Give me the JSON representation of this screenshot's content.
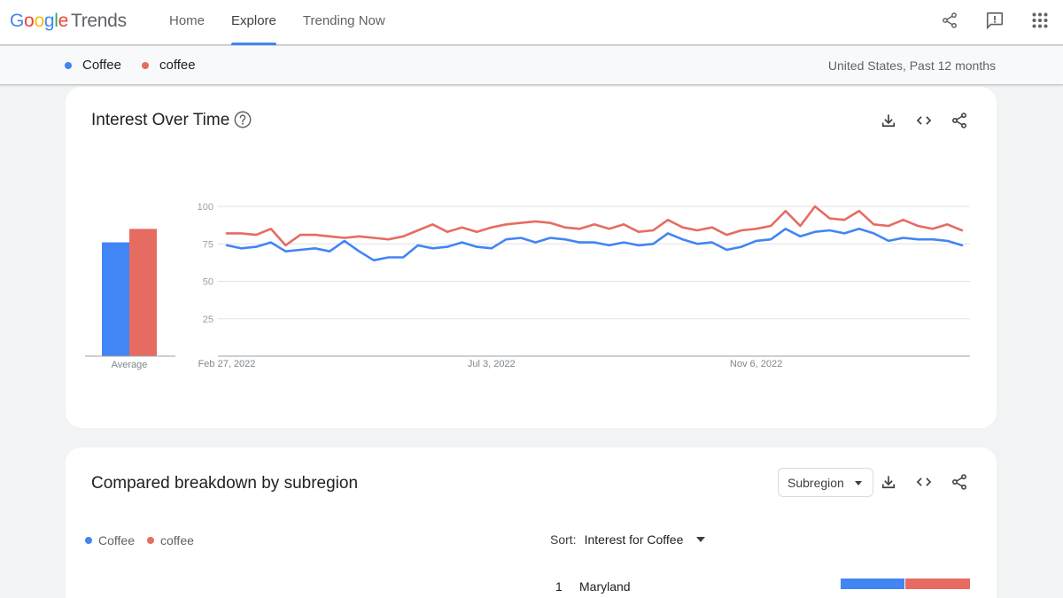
{
  "header": {
    "logo_google": [
      "G",
      "o",
      "o",
      "g",
      "l",
      "e"
    ],
    "logo_trends": "Trends",
    "nav": [
      {
        "label": "Home",
        "active": false
      },
      {
        "label": "Explore",
        "active": true
      },
      {
        "label": "Trending Now",
        "active": false
      }
    ],
    "icons": [
      "share-icon",
      "feedback-icon",
      "apps-grid-icon"
    ]
  },
  "compare": {
    "terms": [
      {
        "label": "Coffee",
        "color": "#4285f4"
      },
      {
        "label": "coffee",
        "color": "#e66c62"
      }
    ],
    "region": "United States, Past 12 months"
  },
  "interest_over_time": {
    "title": "Interest Over Time",
    "icons": [
      "help-icon",
      "download-icon",
      "embed-icon",
      "share-icon"
    ]
  },
  "chart_data": {
    "type": "line",
    "title": "",
    "xlabel": "",
    "ylabel": "",
    "ylim": [
      0,
      100
    ],
    "yticks": [
      25,
      50,
      75,
      100
    ],
    "x_tick_labels": [
      "Feb 27, 2022",
      "Jul 3, 2022",
      "Nov 6, 2022"
    ],
    "x_tick_indices": [
      0,
      18,
      36
    ],
    "grid": true,
    "average_bars": {
      "label": "Average",
      "values": [
        76,
        85
      ]
    },
    "series": [
      {
        "name": "Coffee",
        "color": "#4285f4",
        "values": [
          74,
          72,
          73,
          76,
          70,
          71,
          72,
          70,
          77,
          70,
          64,
          66,
          66,
          74,
          72,
          73,
          76,
          73,
          72,
          78,
          79,
          76,
          79,
          78,
          76,
          76,
          74,
          76,
          74,
          75,
          82,
          78,
          75,
          76,
          71,
          73,
          77,
          78,
          85,
          80,
          83,
          84,
          82,
          85,
          82,
          77,
          79,
          78,
          78,
          77,
          74
        ]
      },
      {
        "name": "coffee",
        "color": "#e66c62",
        "values": [
          82,
          82,
          81,
          85,
          74,
          81,
          81,
          80,
          79,
          80,
          79,
          78,
          80,
          84,
          88,
          83,
          86,
          83,
          86,
          88,
          89,
          90,
          89,
          86,
          85,
          88,
          85,
          88,
          83,
          84,
          91,
          86,
          84,
          86,
          81,
          84,
          85,
          87,
          97,
          87,
          100,
          92,
          91,
          97,
          88,
          87,
          91,
          87,
          85,
          88,
          84
        ]
      }
    ]
  },
  "subregion": {
    "title": "Compared breakdown by subregion",
    "dropdown_value": "Subregion",
    "legend": [
      {
        "label": "Coffee",
        "color": "#4285f4"
      },
      {
        "label": "coffee",
        "color": "#e66c62"
      }
    ],
    "sort_label": "Sort:",
    "sort_value": "Interest for Coffee",
    "rows": [
      {
        "rank": "1",
        "name": "Maryland",
        "shares": [
          50,
          50
        ]
      }
    ]
  }
}
